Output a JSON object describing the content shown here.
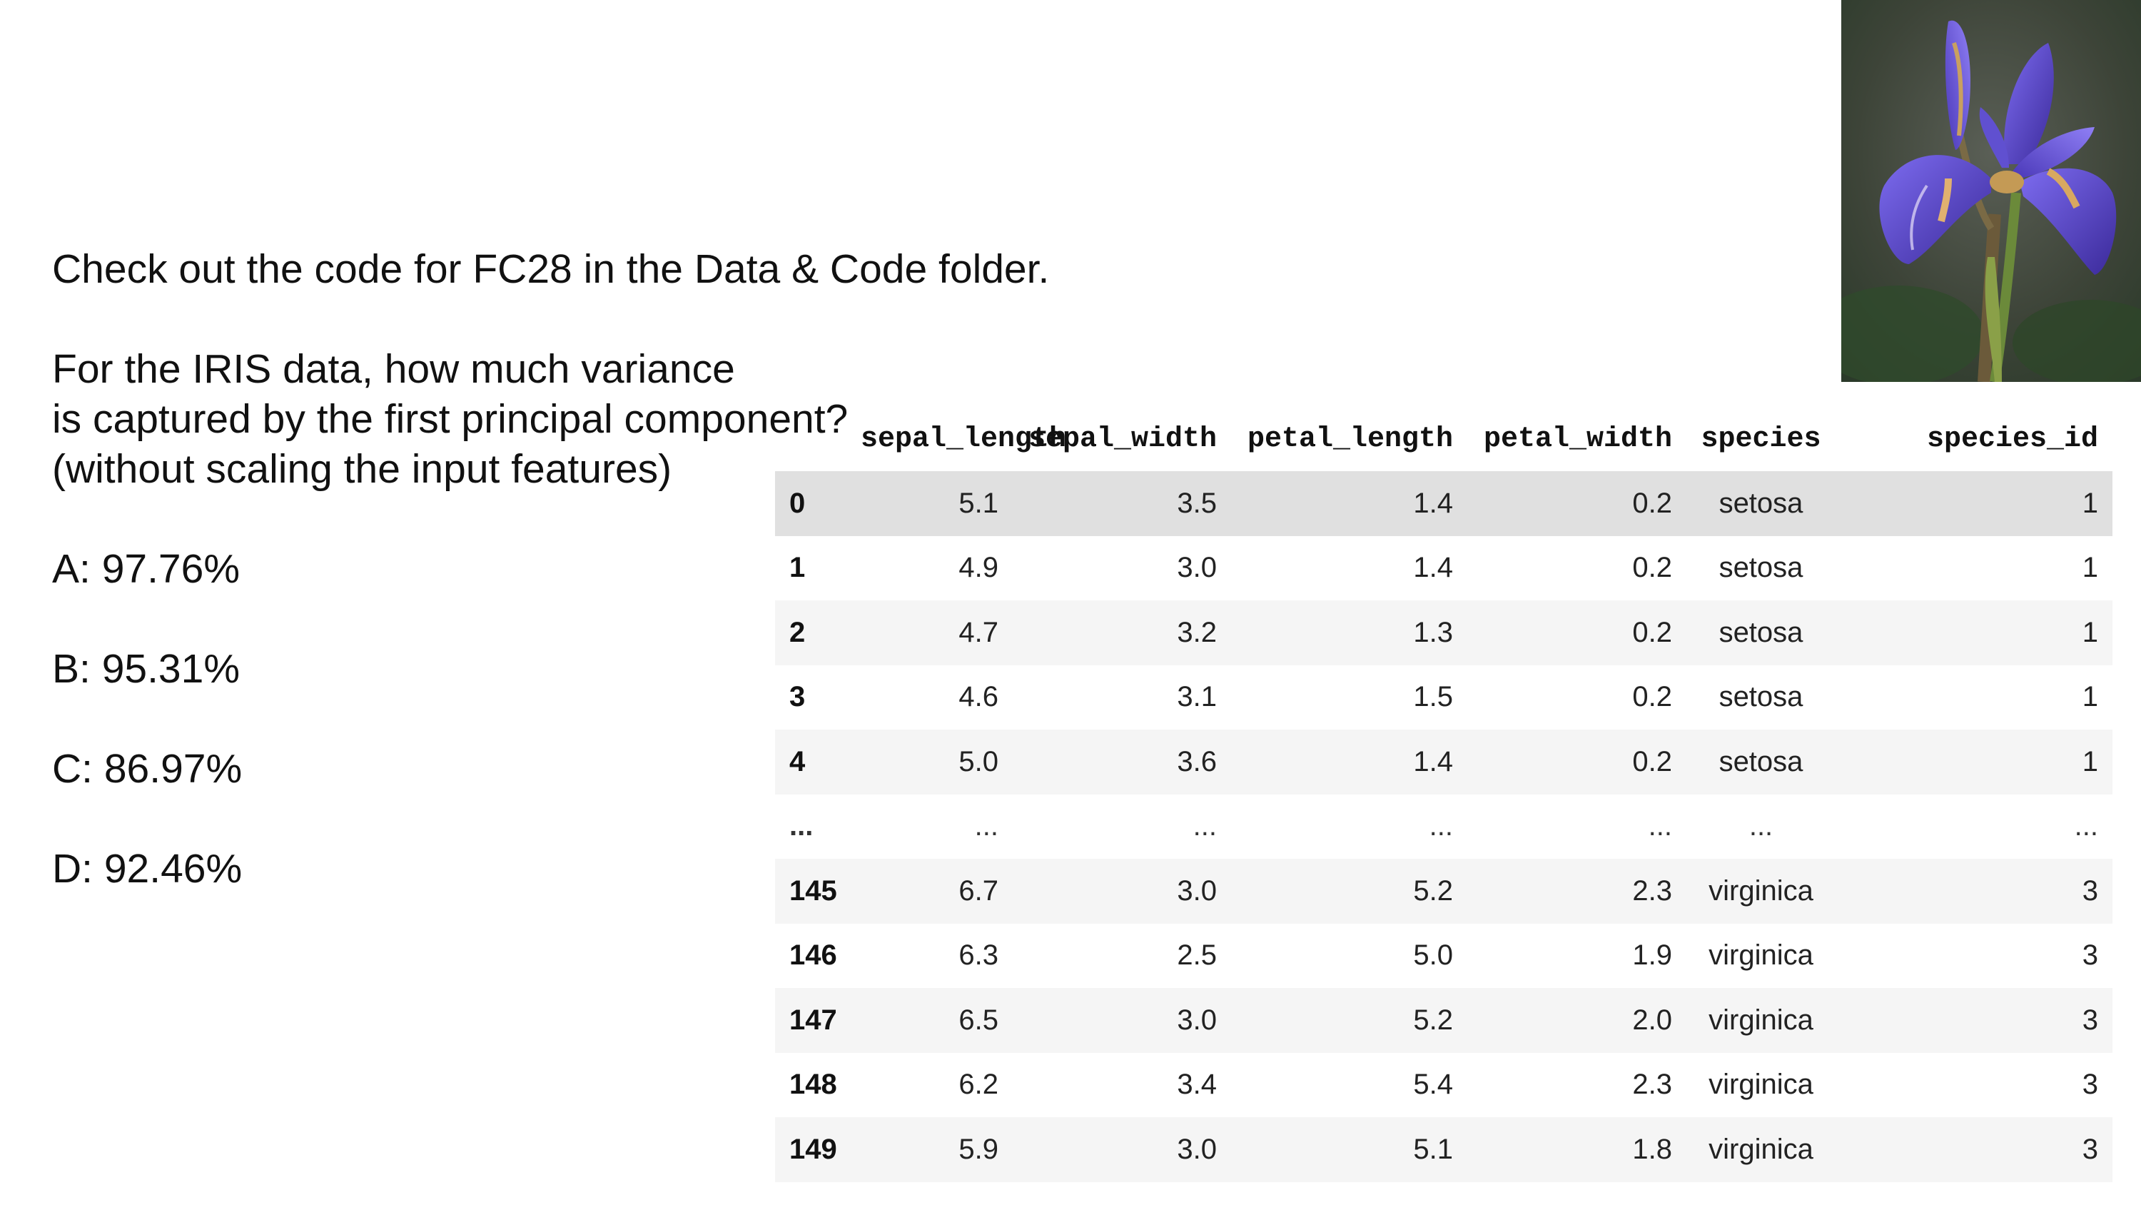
{
  "slide": {
    "intro": "Check out the code for FC28 in the Data & Code folder.",
    "question_lines": [
      "For the IRIS data, how much variance",
      "is captured by the first principal component?",
      "(without scaling the input features)"
    ],
    "options": [
      "A: 97.76%",
      "B: 95.31%",
      "C: 86.97%",
      "D: 92.46%"
    ]
  },
  "image": {
    "subject": "iris-flower-photo",
    "colors": {
      "petal": "#6a58d6",
      "petal_dark": "#3b2a9a",
      "background": "#3f4a3a",
      "stem": "#6b8a3a"
    }
  },
  "table": {
    "columns": [
      "",
      "sepal_length",
      "sepal_width",
      "petal_length",
      "petal_width",
      "species",
      "species_id"
    ],
    "rows": [
      [
        "0",
        "5.1",
        "3.5",
        "1.4",
        "0.2",
        "setosa",
        "1"
      ],
      [
        "1",
        "4.9",
        "3.0",
        "1.4",
        "0.2",
        "setosa",
        "1"
      ],
      [
        "2",
        "4.7",
        "3.2",
        "1.3",
        "0.2",
        "setosa",
        "1"
      ],
      [
        "3",
        "4.6",
        "3.1",
        "1.5",
        "0.2",
        "setosa",
        "1"
      ],
      [
        "4",
        "5.0",
        "3.6",
        "1.4",
        "0.2",
        "setosa",
        "1"
      ],
      [
        "...",
        "...",
        "...",
        "...",
        "...",
        "...",
        "..."
      ],
      [
        "145",
        "6.7",
        "3.0",
        "5.2",
        "2.3",
        "virginica",
        "3"
      ],
      [
        "146",
        "6.3",
        "2.5",
        "5.0",
        "1.9",
        "virginica",
        "3"
      ],
      [
        "147",
        "6.5",
        "3.0",
        "5.2",
        "2.0",
        "virginica",
        "3"
      ],
      [
        "148",
        "6.2",
        "3.4",
        "5.4",
        "2.3",
        "virginica",
        "3"
      ],
      [
        "149",
        "5.9",
        "3.0",
        "5.1",
        "1.8",
        "virginica",
        "3"
      ]
    ]
  }
}
